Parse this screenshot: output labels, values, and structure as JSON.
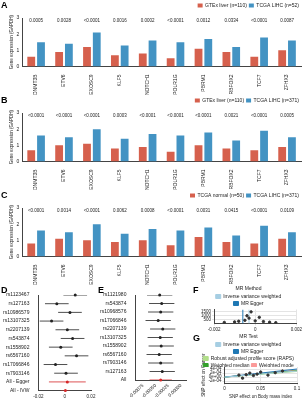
{
  "chart_data": [
    {
      "type": "bar",
      "label": "A",
      "ylabel": "Gene expression (GAPDH)",
      "categories": [
        "DNMT3B",
        "ETV6",
        "EXOSC9",
        "KLF5",
        "NOTCH1",
        "POLR1G",
        "PBRM1",
        "RBFOX2",
        "TCF7",
        "ZFHX3"
      ],
      "series": [
        {
          "name": "GTEx liver (n=110)",
          "color": "#d6604d",
          "values": [
            0.6,
            0.9,
            1.2,
            0.7,
            0.8,
            0.5,
            1.1,
            0.9,
            0.6,
            1.0
          ]
        },
        {
          "name": "TCGA LIHC (n=52)",
          "color": "#4393c3",
          "values": [
            1.5,
            1.4,
            2.1,
            1.3,
            1.6,
            1.5,
            1.7,
            1.2,
            1.8,
            1.6
          ]
        }
      ],
      "p_values": [
        "0.0005",
        "0.0028",
        "<0.0001",
        "0.0016",
        "0.0002",
        "<0.0001",
        "0.0012",
        "0.0334",
        "<0.0001",
        "0.0087"
      ],
      "ylim": [
        0,
        3
      ],
      "yticks": [
        0,
        1,
        2,
        3
      ],
      "grid": false,
      "legend": "top-right"
    },
    {
      "type": "bar",
      "label": "B",
      "ylabel": "Gene expression (GAPDH)",
      "categories": [
        "DNMT3B",
        "ETV6",
        "EXOSC9",
        "KLF5",
        "NOTCH1",
        "POLR1G",
        "PBRM1",
        "RBFOX2",
        "TCF7",
        "ZFHX3"
      ],
      "series": [
        {
          "name": "GTEx liver (n=110)",
          "color": "#d6604d",
          "values": [
            0.7,
            1.0,
            1.1,
            0.8,
            0.9,
            0.6,
            1.0,
            0.8,
            0.7,
            0.9
          ]
        },
        {
          "name": "TCGA LIHC (n=371)",
          "color": "#4393c3",
          "values": [
            1.6,
            1.5,
            2.0,
            1.4,
            1.7,
            1.6,
            1.8,
            1.3,
            1.9,
            1.5
          ]
        }
      ],
      "p_values": [
        "<0.0001",
        "<0.0001",
        "<0.0001",
        "0.0003",
        "<0.0001",
        "<0.0001",
        "<0.0001",
        "0.0021",
        "<0.0001",
        "0.0005"
      ],
      "ylim": [
        0,
        3
      ],
      "yticks": [
        0,
        1,
        2,
        3
      ],
      "grid": false,
      "legend": "top-right"
    },
    {
      "type": "bar",
      "label": "C",
      "ylabel": "Gene expression (GAPDH)",
      "categories": [
        "DNMT3B",
        "ETV6",
        "EXOSC9",
        "KLF5",
        "NOTCH1",
        "POLR1G",
        "PBRM1",
        "RBFOX2",
        "TCF7",
        "ZFHX3"
      ],
      "series": [
        {
          "name": "TCGA normal (n=50)",
          "color": "#d6604d",
          "values": [
            0.8,
            1.1,
            1.0,
            0.9,
            1.0,
            0.7,
            1.2,
            0.9,
            0.8,
            1.1
          ]
        },
        {
          "name": "TCGA LIHC (n=371)",
          "color": "#4393c3",
          "values": [
            1.6,
            1.5,
            2.0,
            1.4,
            1.7,
            1.6,
            1.8,
            1.3,
            1.9,
            1.5
          ]
        }
      ],
      "p_values": [
        "<0.0001",
        "0.0014",
        "<0.0001",
        "0.0062",
        "0.0008",
        "<0.0001",
        "0.0031",
        "0.0415",
        "<0.0001",
        "0.0109"
      ],
      "ylim": [
        0,
        3
      ],
      "yticks": [
        0,
        1,
        2,
        3
      ],
      "grid": false,
      "legend": "top-right"
    },
    {
      "type": "forest",
      "label": "D",
      "categories": [
        "rs1123467",
        "rs127163",
        "rs10986579",
        "rs13107325",
        "rs2207139",
        "rs543874",
        "rs1558902",
        "rs6567160",
        "rs17066846",
        "rs7903146",
        "All - Egger",
        "All - IVW"
      ],
      "values": [
        0.008,
        -0.006,
        0.004,
        -0.01,
        0.002,
        0.006,
        -0.003,
        0.009,
        -0.007,
        0.001,
        0.002,
        0.0005
      ],
      "lower": [
        -0.001,
        -0.015,
        -0.005,
        -0.019,
        -0.007,
        -0.003,
        -0.012,
        0.0,
        -0.016,
        -0.008,
        -0.012,
        -0.003
      ],
      "upper": [
        0.017,
        0.003,
        0.013,
        -0.001,
        0.011,
        0.015,
        0.006,
        0.018,
        0.002,
        0.01,
        0.016,
        0.004
      ],
      "colors": [
        "#222222",
        "#222222",
        "#222222",
        "#222222",
        "#222222",
        "#222222",
        "#222222",
        "#222222",
        "#222222",
        "#222222",
        "#d62728",
        "#d62728"
      ],
      "xlim": [
        -0.02,
        0.02
      ],
      "xticks": [
        -0.02,
        0,
        0.02
      ],
      "grid": false
    },
    {
      "type": "forest",
      "label": "E",
      "categories": [
        "rs1121980",
        "rs543874",
        "rs10968576",
        "rs17066846",
        "rs2207139",
        "rs13107325",
        "rs1558902",
        "rs6567160",
        "rs7903146",
        "rs127163",
        "All"
      ],
      "values": [
        -0.00042,
        -0.00038,
        -0.0004,
        -0.00045,
        -0.00036,
        -0.00041,
        -0.00039,
        -0.00043,
        -0.0004,
        -0.00037,
        -0.0004
      ],
      "lower": [
        -0.00067,
        -0.00063,
        -0.00065,
        -0.0007,
        -0.00061,
        -0.00066,
        -0.00064,
        -0.00068,
        -0.00065,
        -0.00062,
        -0.00062
      ],
      "upper": [
        -0.00017,
        -0.00013,
        -0.00015,
        -0.0002,
        -0.00011,
        -0.00016,
        -0.00014,
        -0.00018,
        -0.00015,
        -0.00012,
        -0.00018
      ],
      "colors": [
        "#222222",
        "#222222",
        "#222222",
        "#222222",
        "#222222",
        "#222222",
        "#222222",
        "#222222",
        "#222222",
        "#222222",
        "#d62728"
      ],
      "xlim": [
        -0.0009,
        0.0001
      ],
      "xticks": [
        {
          "value": -0.00075,
          "label": "-0.00075"
        },
        {
          "value": -0.0005,
          "label": "-0.00050"
        },
        {
          "value": -0.00025,
          "label": "-0.00025"
        },
        {
          "value": 0,
          "label": "0.00000"
        }
      ],
      "grid": false
    },
    {
      "type": "scatter",
      "label": "F",
      "legend_title": "MR Method",
      "legend": "top",
      "points": {
        "color": "#333333",
        "x": [
          -0.0015,
          -0.001,
          -0.0008,
          -0.0005,
          -0.0003,
          -0.0002,
          0,
          0.0002,
          0.0004,
          0.0007,
          0.001,
          -0.0004
        ],
        "y": [
          150,
          220,
          300,
          420,
          700,
          1500,
          350,
          800,
          260,
          180,
          120,
          1000
        ]
      },
      "series": [
        {
          "name": "Inverse variance weighted",
          "color": "#a6cee3",
          "x": [
            -0.0003,
            -0.0003
          ],
          "y": [
            0,
            1800
          ]
        },
        {
          "name": "MR Egger",
          "color": "#1f78b4",
          "x": [
            -0.0006,
            -0.0006
          ],
          "y": [
            0,
            1800
          ]
        }
      ],
      "xlim": [
        -0.002,
        0.002
      ],
      "xticks": [
        -0.002,
        0,
        0.002
      ],
      "ylim": [
        0,
        1800
      ],
      "yticks": [
        500,
        1000,
        1500
      ],
      "grid": true
    },
    {
      "type": "scatter",
      "label": "G",
      "legend_title": "MR Test",
      "legend": "top",
      "xlabel": "SNP effect on Body mass index",
      "ylabel": "SNP effect on Cancer",
      "points": {
        "color": "#333333",
        "x": [
          0.02,
          0.025,
          0.03,
          0.035,
          0.04,
          0.045,
          0.05,
          0.06,
          0.07,
          0.08
        ],
        "y": [
          0.0001,
          -5e-05,
          0.00012,
          0.0002,
          8e-05,
          0.00015,
          0.00025,
          0.0001,
          0.00022,
          0.0003
        ]
      },
      "series": [
        {
          "name": "Inverse variance weighted",
          "color": "#a6cee3",
          "x": [
            0,
            0.1
          ],
          "y": [
            0,
            0.0003
          ]
        },
        {
          "name": "MR Egger",
          "color": "#1f78b4",
          "x": [
            0,
            0.1
          ],
          "y": [
            0,
            0.0004
          ]
        },
        {
          "name": "Robust adjusted profile score (RAPS)",
          "color": "#b2df8a",
          "x": [
            0,
            0.1
          ],
          "y": [
            0,
            0.00028
          ]
        },
        {
          "name": "Weighted median",
          "color": "#33a02c",
          "x": [
            0,
            0.1
          ],
          "y": [
            0,
            0.00032
          ]
        },
        {
          "name": "Weighted mode",
          "color": "#fb9a99",
          "x": [
            0,
            0.1
          ],
          "y": [
            0,
            0.00035
          ]
        }
      ],
      "xlim": [
        0,
        0.1
      ],
      "xticks": [
        0,
        0.05,
        0.1
      ],
      "ylim": [
        -0.0003,
        0.0005
      ],
      "yticks": [
        {
          "value": -0.0002,
          "label": "-2e-04"
        },
        {
          "value": 0,
          "label": "0e+00"
        },
        {
          "value": 0.0002,
          "label": "2e-04"
        },
        {
          "value": 0.0004,
          "label": "4e-04"
        }
      ],
      "grid": true
    }
  ]
}
